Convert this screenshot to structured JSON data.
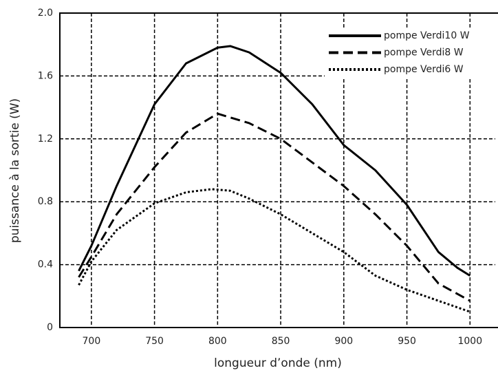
{
  "chart_data": {
    "type": "line",
    "xlabel": "longueur d’onde (nm)",
    "ylabel": "puissance à la sortie (W)",
    "xlim": [
      675,
      1020
    ],
    "ylim": [
      0,
      2
    ],
    "xticks": [
      700,
      750,
      800,
      850,
      900,
      950,
      1000
    ],
    "yticks": [
      0,
      0.4,
      0.8,
      1.2,
      1.6,
      {
        "value": 2,
        "label": "2.0"
      }
    ],
    "grid": true,
    "legend": "upper right",
    "series": [
      {
        "name": "pompe Verdi10 W",
        "color": "#000000",
        "line_style": "solid",
        "x": [
          690,
          700,
          720,
          750,
          775,
          800,
          810,
          825,
          850,
          875,
          900,
          925,
          950,
          975,
          990,
          1000
        ],
        "values": [
          0.36,
          0.52,
          0.9,
          1.42,
          1.68,
          1.78,
          1.79,
          1.75,
          1.62,
          1.42,
          1.16,
          1.0,
          0.78,
          0.48,
          0.38,
          0.33
        ]
      },
      {
        "name": "pompe Verdi8 W",
        "color": "#000000",
        "line_style": "dashed",
        "x": [
          690,
          700,
          720,
          750,
          775,
          800,
          825,
          850,
          875,
          900,
          925,
          950,
          975,
          1000
        ],
        "values": [
          0.32,
          0.45,
          0.72,
          1.02,
          1.24,
          1.36,
          1.3,
          1.2,
          1.05,
          0.9,
          0.72,
          0.52,
          0.28,
          0.17
        ]
      },
      {
        "name": "pompe Verdi6 W",
        "color": "#000000",
        "line_style": "dotted",
        "x": [
          690,
          700,
          720,
          750,
          775,
          795,
          810,
          825,
          850,
          875,
          900,
          925,
          950,
          975,
          1000
        ],
        "values": [
          0.27,
          0.42,
          0.62,
          0.79,
          0.86,
          0.88,
          0.87,
          0.82,
          0.72,
          0.6,
          0.48,
          0.33,
          0.24,
          0.17,
          0.1
        ]
      }
    ]
  }
}
